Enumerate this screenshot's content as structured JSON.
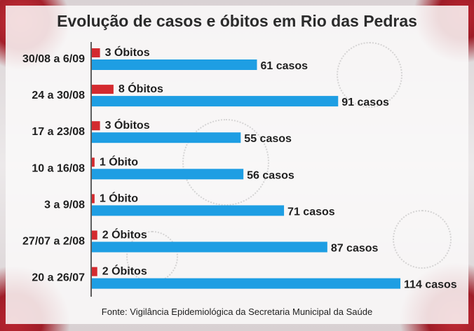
{
  "chart_data": {
    "type": "bar",
    "orientation": "horizontal",
    "title": "Evolução de casos e óbitos em Rio das Pedras",
    "source": "Fonte: Vigilância Epidemiológica da Secretaria Municipal da Saúde",
    "categories": [
      "30/08 a 6/09",
      "24 a 30/08",
      "17 a 23/08",
      "10 a 16/08",
      "3 a 9/08",
      "27/07 a 2/08",
      "20 a 26/07"
    ],
    "series": [
      {
        "key": "obitos",
        "color": "#d42a2f",
        "values": [
          3,
          8,
          3,
          1,
          1,
          2,
          2
        ],
        "labels": [
          "3 Óbitos",
          "8 Óbitos",
          "3 Óbitos",
          "1 Óbito",
          "1 Óbito",
          "2 Óbitos",
          "2 Óbitos"
        ]
      },
      {
        "key": "casos",
        "color": "#1e9ee3",
        "values": [
          61,
          91,
          55,
          56,
          71,
          87,
          114
        ],
        "labels": [
          "61 casos",
          "91 casos",
          "55 casos",
          "56 casos",
          "71 casos",
          "87 casos",
          "114 casos"
        ]
      }
    ],
    "xlim": [
      0,
      114
    ],
    "gridlines": false,
    "legend": "none"
  }
}
